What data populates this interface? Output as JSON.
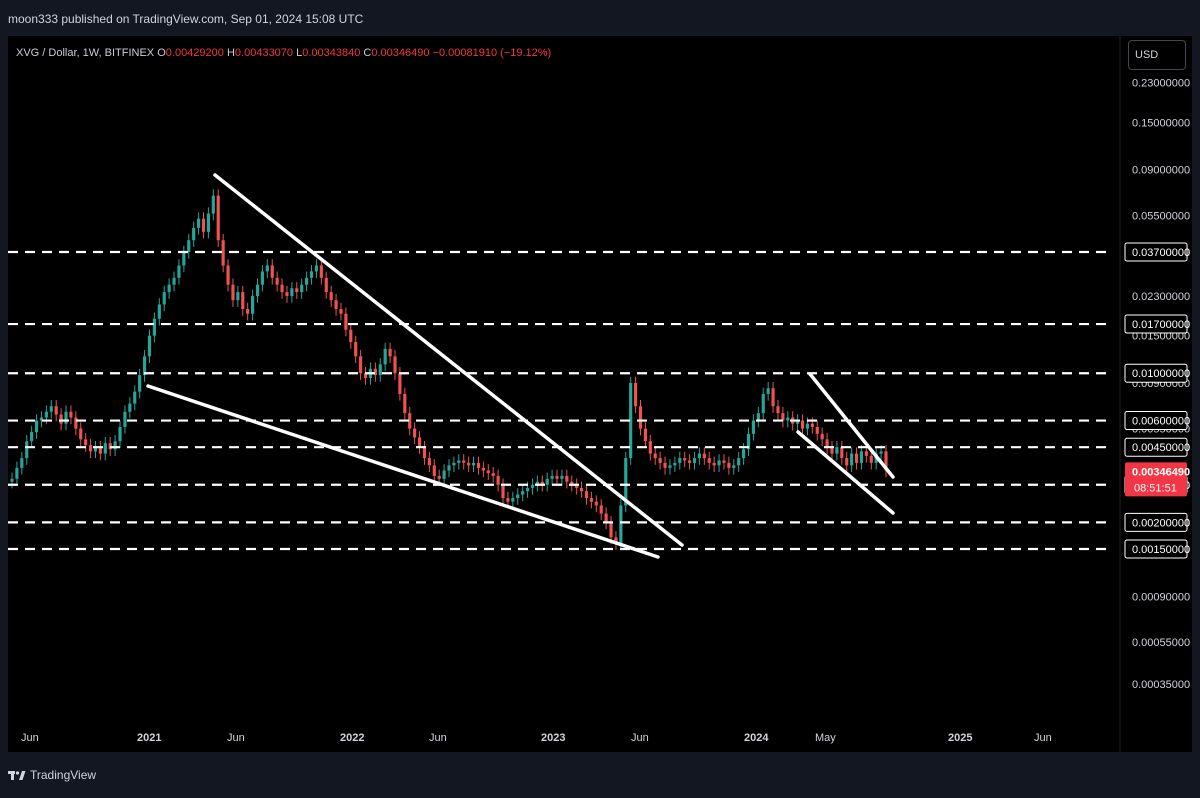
{
  "header": {
    "published": "moon333 published on TradingView.com, Sep 01, 2024 15:08 UTC"
  },
  "legend": {
    "symbol": "XVG / Dollar, 1W, BITFINEX",
    "o_label": "O",
    "o_value": "0.00429200",
    "h_label": "H",
    "h_value": "0.00433070",
    "l_label": "L",
    "l_value": "0.00343840",
    "c_label": "C",
    "c_value": "0.00346490",
    "change": "−0.00081910 (−19.12%)"
  },
  "currency_button": "USD",
  "footer": {
    "brand": "TradingView"
  },
  "colors": {
    "up": "#26a69a",
    "down": "#ef5350",
    "price_tag": "#f23645",
    "background": "#000000",
    "frame": "#131722"
  },
  "chart_data": {
    "type": "candlestick",
    "scale": "log",
    "ylim": [
      0.00028,
      0.28
    ],
    "x_ticks": [
      "Jun",
      "2021",
      "Jun",
      "2022",
      "Jun",
      "2023",
      "Jun",
      "2024",
      "May",
      "2025",
      "Jun"
    ],
    "y_ticks": [
      "0.23000000",
      "0.15000000",
      "0.09000000",
      "0.05500000",
      "0.03700000",
      "0.02300000",
      "0.01700000",
      "0.01500000",
      "0.01000000",
      "0.00900000",
      "0.00600000",
      "0.00550000",
      "0.00450000",
      "0.00300000",
      "0.00200000",
      "0.00150000",
      "0.00090000",
      "0.00055000",
      "0.00035000"
    ],
    "horizontal_levels": [
      {
        "value": 0.037,
        "label": "0.03700000"
      },
      {
        "value": 0.017,
        "label": "0.01700000"
      },
      {
        "value": 0.01,
        "label": "0.01000000"
      },
      {
        "value": 0.006,
        "label": "0.00600000"
      },
      {
        "value": 0.0045,
        "label": "0.00450000"
      },
      {
        "value": 0.003,
        "label": "0.00300000"
      },
      {
        "value": 0.002,
        "label": "0.00200000"
      },
      {
        "value": 0.0015,
        "label": "0.00150000"
      }
    ],
    "last_price": {
      "value": 0.0034649,
      "label": "0.00346490",
      "countdown": "08:51:51"
    },
    "series": [
      {
        "name": "XVG weekly close (approx.)",
        "values": [
          0.0032,
          0.0036,
          0.004,
          0.0048,
          0.0053,
          0.006,
          0.0062,
          0.0066,
          0.007,
          0.0064,
          0.0058,
          0.0066,
          0.0062,
          0.0055,
          0.0049,
          0.0046,
          0.0043,
          0.0045,
          0.0042,
          0.0047,
          0.0044,
          0.0048,
          0.0056,
          0.0066,
          0.0072,
          0.0082,
          0.0098,
          0.012,
          0.015,
          0.018,
          0.021,
          0.024,
          0.026,
          0.028,
          0.032,
          0.037,
          0.042,
          0.048,
          0.053,
          0.046,
          0.056,
          0.068,
          0.042,
          0.032,
          0.026,
          0.022,
          0.024,
          0.02,
          0.019,
          0.023,
          0.026,
          0.03,
          0.032,
          0.028,
          0.026,
          0.024,
          0.023,
          0.025,
          0.024,
          0.026,
          0.028,
          0.03,
          0.032,
          0.028,
          0.024,
          0.022,
          0.02,
          0.019,
          0.016,
          0.014,
          0.012,
          0.01,
          0.0095,
          0.0105,
          0.0098,
          0.011,
          0.013,
          0.012,
          0.01,
          0.008,
          0.0065,
          0.0055,
          0.005,
          0.0045,
          0.004,
          0.0037,
          0.0033,
          0.0032,
          0.0035,
          0.0037,
          0.0038,
          0.0039,
          0.0038,
          0.0037,
          0.0038,
          0.0036,
          0.0035,
          0.0034,
          0.0033,
          0.003,
          0.0026,
          0.0025,
          0.0026,
          0.0027,
          0.0028,
          0.0029,
          0.003,
          0.0031,
          0.003,
          0.0032,
          0.0033,
          0.0032,
          0.0033,
          0.0031,
          0.003,
          0.0029,
          0.0028,
          0.0026,
          0.0025,
          0.0024,
          0.0022,
          0.002,
          0.0017,
          0.0016,
          0.0024,
          0.004,
          0.009,
          0.007,
          0.0055,
          0.0048,
          0.0042,
          0.004,
          0.0038,
          0.0036,
          0.0037,
          0.0038,
          0.004,
          0.0039,
          0.0038,
          0.004,
          0.0042,
          0.004,
          0.0038,
          0.0037,
          0.0039,
          0.0038,
          0.0036,
          0.0037,
          0.004,
          0.0044,
          0.0052,
          0.006,
          0.0065,
          0.008,
          0.0085,
          0.007,
          0.0065,
          0.006,
          0.0062,
          0.0058,
          0.006,
          0.0055,
          0.0058,
          0.0056,
          0.0052,
          0.0049,
          0.0045,
          0.0042,
          0.0045,
          0.004,
          0.0037,
          0.0042,
          0.0038,
          0.0043,
          0.0041,
          0.0038,
          0.0042,
          0.0043,
          0.0035
        ]
      }
    ],
    "trendlines": [
      {
        "name": "upper-wedge-line",
        "from": [
          "2021-04",
          0.082
        ],
        "to": [
          "2023-08",
          0.0016
        ]
      },
      {
        "name": "lower-wedge-line",
        "from": [
          "2021-01",
          0.0082
        ],
        "to": [
          "2023-07",
          0.00145
        ]
      },
      {
        "name": "upper-channel-line",
        "from": [
          "2024-04",
          0.0098
        ],
        "to": [
          "2024-08",
          0.0036
        ]
      },
      {
        "name": "lower-channel-line",
        "from": [
          "2024-04",
          0.0052
        ],
        "to": [
          "2024-08",
          0.0022
        ]
      }
    ]
  }
}
